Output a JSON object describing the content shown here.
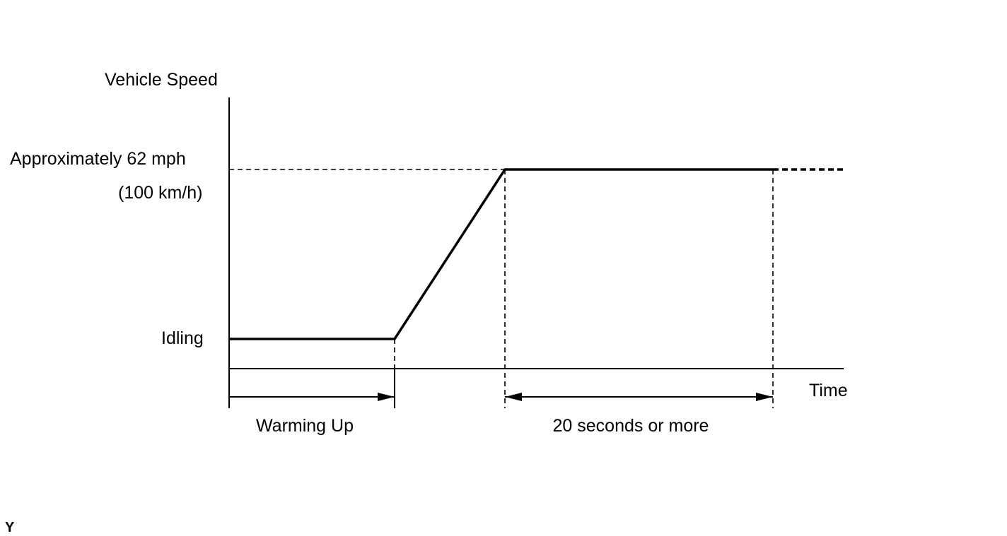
{
  "axes": {
    "y_label": "Vehicle Speed",
    "x_label": "Time"
  },
  "levels": {
    "high": "Approximately 62 mph",
    "high_metric": "(100 km/h)",
    "low": "Idling"
  },
  "phases": {
    "warm_up": "Warming Up",
    "hold": "20 seconds or more"
  },
  "corner_mark": "Y"
}
